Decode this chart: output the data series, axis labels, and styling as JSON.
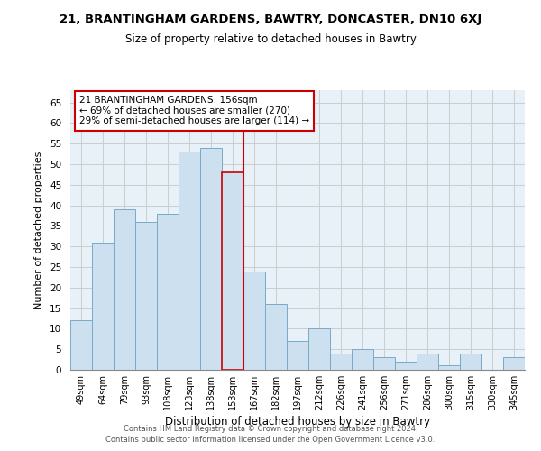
{
  "title_line1": "21, BRANTINGHAM GARDENS, BAWTRY, DONCASTER, DN10 6XJ",
  "title_line2": "Size of property relative to detached houses in Bawtry",
  "xlabel": "Distribution of detached houses by size in Bawtry",
  "ylabel": "Number of detached properties",
  "bar_labels": [
    "49sqm",
    "64sqm",
    "79sqm",
    "93sqm",
    "108sqm",
    "123sqm",
    "138sqm",
    "153sqm",
    "167sqm",
    "182sqm",
    "197sqm",
    "212sqm",
    "226sqm",
    "241sqm",
    "256sqm",
    "271sqm",
    "286sqm",
    "300sqm",
    "315sqm",
    "330sqm",
    "345sqm"
  ],
  "bar_heights": [
    12,
    31,
    39,
    36,
    38,
    53,
    54,
    48,
    24,
    16,
    7,
    10,
    4,
    5,
    3,
    2,
    4,
    1,
    4,
    0,
    3
  ],
  "bar_color": "#cce0f0",
  "bar_edge_color": "#7aaac8",
  "highlight_index": 7,
  "highlight_line_color": "#cc0000",
  "annotation_line1": "21 BRANTINGHAM GARDENS: 156sqm",
  "annotation_line2": "← 69% of detached houses are smaller (270)",
  "annotation_line3": "29% of semi-detached houses are larger (114) →",
  "annotation_box_color": "#ffffff",
  "annotation_box_edge": "#cc0000",
  "ylim": [
    0,
    68
  ],
  "yticks": [
    0,
    5,
    10,
    15,
    20,
    25,
    30,
    35,
    40,
    45,
    50,
    55,
    60,
    65
  ],
  "grid_color": "#cccccc",
  "background_color": "#ffffff",
  "plot_bg_color": "#e8f0f8",
  "footer_line1": "Contains HM Land Registry data © Crown copyright and database right 2024.",
  "footer_line2": "Contains public sector information licensed under the Open Government Licence v3.0."
}
